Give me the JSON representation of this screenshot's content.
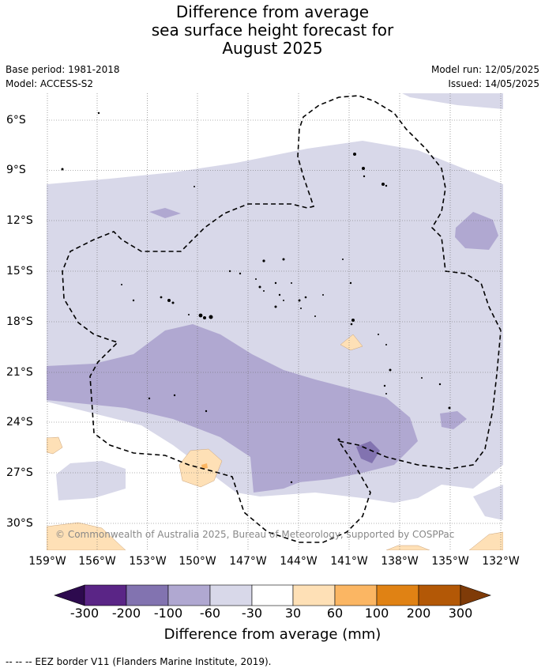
{
  "title": {
    "line1": "Difference from average",
    "line2": "sea surface height forecast for",
    "line3": "August 2025"
  },
  "meta": {
    "base_period": "Base period: 1981-2018",
    "model": "Model: ACCESS-S2",
    "model_run": "Model run: 12/05/2025",
    "issued": "Issued: 14/05/2025"
  },
  "map": {
    "lon_ticks": [
      "159°W",
      "156°W",
      "153°W",
      "150°W",
      "147°W",
      "144°W",
      "141°W",
      "138°W",
      "135°W",
      "132°W"
    ],
    "lat_ticks": [
      "6°S",
      "9°S",
      "12°S",
      "15°S",
      "18°S",
      "21°S",
      "24°S",
      "27°S",
      "30°S"
    ],
    "copyright": "© Commonwealth of Australia 2025, Bureau of Meteorology, supported by COSPPac",
    "colors": {
      "neg300": "#2d0a4e",
      "neg200": "#5a2586",
      "neg100": "#8273b0",
      "neg60": "#b0a8d1",
      "neg30": "#d8d8e9",
      "zero": "#ffffff",
      "pos30": "#fee0b6",
      "pos60": "#fbb663",
      "pos100": "#e08214",
      "pos200": "#b35806",
      "pos300": "#7f3b08"
    }
  },
  "colorbar": {
    "labels": [
      "-300",
      "-200",
      "-100",
      "-60",
      "-30",
      "30",
      "60",
      "100",
      "200",
      "300"
    ],
    "title": "Difference from average (mm)"
  },
  "footnote": "--  --  -- EEZ border V11 (Flanders Marine Institute, 2019)."
}
